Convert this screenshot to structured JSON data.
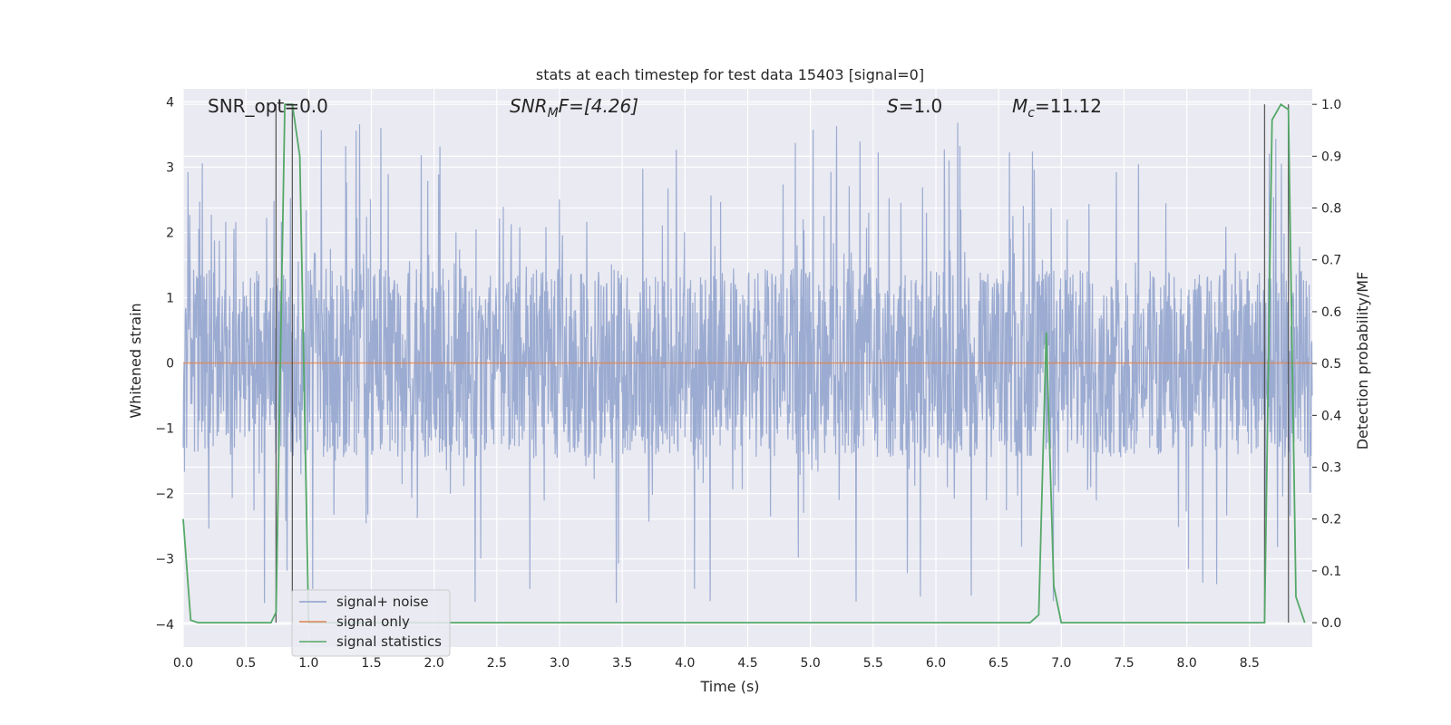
{
  "chart_data": {
    "type": "line",
    "title": "stats at each timestep for test data 15403 [signal=0]",
    "xlabel": "Time (s)",
    "ylabel": "Whitened strain",
    "ylabel_right": "Detection probability/MF",
    "xlim": [
      0.0,
      9.0
    ],
    "ylim": [
      -4.35,
      4.2
    ],
    "ylim_right": [
      -0.047,
      1.03
    ],
    "grid": true,
    "legend_position": "lower-left",
    "xticks": [
      "0.0",
      "0.5",
      "1.0",
      "1.5",
      "2.0",
      "2.5",
      "3.0",
      "3.5",
      "4.0",
      "4.5",
      "5.0",
      "5.5",
      "6.0",
      "6.5",
      "7.0",
      "7.5",
      "8.0",
      "8.5"
    ],
    "xtick_values": [
      0.0,
      0.5,
      1.0,
      1.5,
      2.0,
      2.5,
      3.0,
      3.5,
      4.0,
      4.5,
      5.0,
      5.5,
      6.0,
      6.5,
      7.0,
      7.5,
      8.0,
      8.5
    ],
    "yticks": [
      "−4",
      "−3",
      "−2",
      "−1",
      "0",
      "1",
      "2",
      "3",
      "4"
    ],
    "ytick_values": [
      -4,
      -3,
      -2,
      -1,
      0,
      1,
      2,
      3,
      4
    ],
    "yticks_right": [
      "0.0",
      "0.1",
      "0.2",
      "0.3",
      "0.4",
      "0.5",
      "0.6",
      "0.7",
      "0.8",
      "0.9",
      "1.0"
    ],
    "ytick_values_right": [
      0.0,
      0.1,
      0.2,
      0.3,
      0.4,
      0.5,
      0.6,
      0.7,
      0.8,
      0.9,
      1.0
    ],
    "annotations": {
      "snr_opt": "SNR_opt=0.0",
      "snr_mf_base": "SNR",
      "snr_mf_sub": "M",
      "snr_mf_rest": "F=[4.26]",
      "s_label": "S",
      "s_value": "=1.0",
      "mc_base": "M",
      "mc_sub": "c",
      "mc_value": "=11.12"
    },
    "series": [
      {
        "name": "signal+ noise",
        "color": "#8da0cb",
        "description_only_visual": "dense noise band roughly between -1.7 and 1.5 with spikes up to about 3.7 and down to -4",
        "amplitude_core": 1.45,
        "max_spike": 3.75,
        "min_spike": -4.0
      },
      {
        "name": "signal only",
        "color": "#dd8452",
        "x": [
          0.0,
          9.0
        ],
        "y": [
          0.0,
          0.0
        ]
      },
      {
        "name": "signal statistics",
        "color": "#55a868",
        "x": [
          0.0,
          0.06,
          0.12,
          0.19,
          0.25,
          0.32,
          0.38,
          0.45,
          0.51,
          0.58,
          0.64,
          0.7,
          0.74,
          0.81,
          0.87,
          0.93,
          1.0,
          1.5,
          2.0,
          2.5,
          3.0,
          3.5,
          4.0,
          4.5,
          5.0,
          5.5,
          6.0,
          6.5,
          6.75,
          6.82,
          6.88,
          6.94,
          7.0,
          7.5,
          8.0,
          8.5,
          8.62,
          8.68,
          8.75,
          8.81,
          8.87,
          8.94
        ],
        "y": [
          0.2,
          0.005,
          0.0,
          0.0,
          0.0,
          0.0,
          0.0,
          0.0,
          0.0,
          0.0,
          0.0,
          0.0,
          0.02,
          1.0,
          1.0,
          0.9,
          0.0,
          0.0,
          0.0,
          0.0,
          0.0,
          0.0,
          0.0,
          0.0,
          0.0,
          0.0,
          0.0,
          0.0,
          0.0,
          0.015,
          0.56,
          0.07,
          0.0,
          0.0,
          0.0,
          0.0,
          0.0,
          0.97,
          1.0,
          0.99,
          0.05,
          0.0
        ]
      }
    ],
    "vertical_markers": [
      {
        "x": 0.74,
        "y_top": 1.0
      },
      {
        "x": 0.87,
        "y_top": 1.0
      },
      {
        "x": 8.62,
        "y_top": 1.0
      },
      {
        "x": 8.81,
        "y_top": 1.0
      }
    ]
  },
  "legend": {
    "items": [
      "signal+ noise",
      "signal only",
      "signal statistics"
    ]
  }
}
